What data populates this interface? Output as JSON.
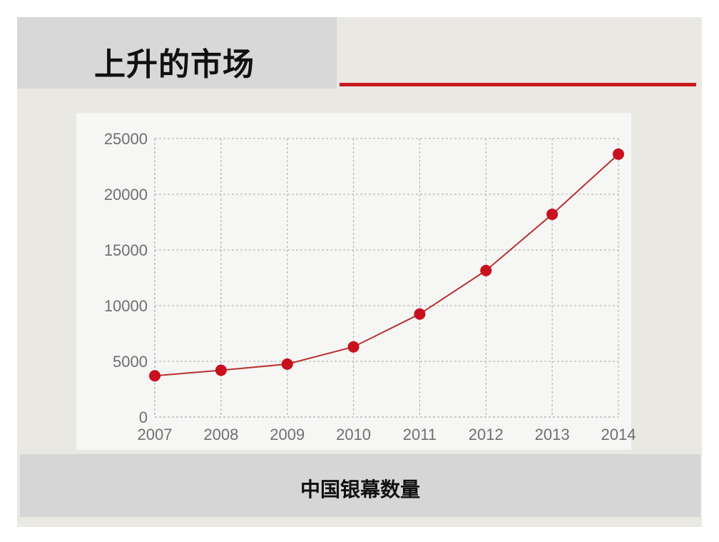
{
  "slide": {
    "title": "上升的市场",
    "caption": "中国银幕数量",
    "accent_color": "#c8191f"
  },
  "chart_data": {
    "type": "line",
    "x": [
      "2007",
      "2008",
      "2009",
      "2010",
      "2011",
      "2012",
      "2013",
      "2014"
    ],
    "values": [
      3700,
      4200,
      4750,
      6300,
      9250,
      13150,
      18200,
      23600
    ],
    "title": "",
    "xlabel": "",
    "ylabel": "",
    "ylim": [
      0,
      25000
    ],
    "yticks": [
      "0",
      "5000",
      "10000",
      "15000",
      "20000",
      "25000"
    ],
    "grid": true,
    "line_color": "#b8312f",
    "marker_color": "#c8101e"
  }
}
